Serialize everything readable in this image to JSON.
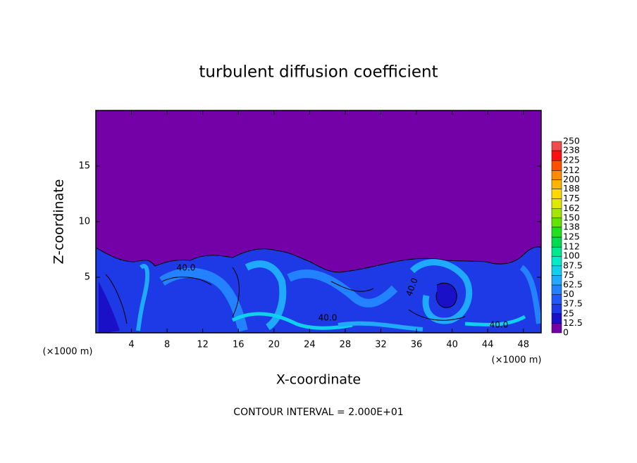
{
  "chart_data": {
    "type": "contour",
    "title": "turbulent diffusion coefficient",
    "x_label": "X-coordinate",
    "y_label": "Z-coordinate",
    "x_unit_label": "(×1000 m)",
    "y_unit_label": "(×1000 m)",
    "footer": "CONTOUR INTERVAL = 2.000E+01",
    "contour_labels": [
      "40.0",
      "40.0",
      "40.0",
      "40.0"
    ],
    "xlim": [
      0,
      50
    ],
    "xticks": [
      4,
      8,
      12,
      16,
      20,
      24,
      28,
      32,
      36,
      40,
      44,
      48
    ],
    "ylim": [
      0,
      20
    ],
    "yticks": [
      5,
      10,
      15
    ],
    "colorbar": {
      "levels": [
        0,
        12.5,
        25,
        37.5,
        50,
        62.5,
        75,
        87.5,
        100,
        112,
        125,
        138,
        150,
        162,
        175,
        188,
        200,
        212,
        225,
        238,
        250
      ],
      "colors": [
        "#7400a8",
        "#1a10c8",
        "#1e3ae6",
        "#2258f8",
        "#2282ff",
        "#20aaff",
        "#10d0f0",
        "#00ecc8",
        "#00e890",
        "#00dc50",
        "#20e020",
        "#60e400",
        "#a0e800",
        "#e0e800",
        "#ffd800",
        "#ffb400",
        "#ff8c00",
        "#ff5000",
        "#ff1010",
        "#f04a4a",
        "#f08a8a"
      ]
    }
  }
}
